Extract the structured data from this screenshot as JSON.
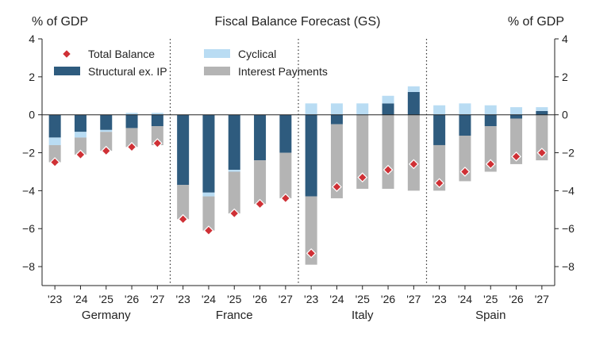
{
  "chart_data": {
    "type": "bar",
    "stacked": true,
    "title": "Fiscal Balance Forecast (GS)",
    "ylabel_left": "% of GDP",
    "ylabel_right": "% of GDP",
    "ylim": [
      -9,
      4
    ],
    "yticks": [
      -8,
      -6,
      -4,
      -2,
      0,
      2,
      4
    ],
    "grid": false,
    "legend_position": "top-left",
    "groups": [
      "Germany",
      "France",
      "Italy",
      "Spain"
    ],
    "categories": [
      "'23",
      "'24",
      "'25",
      "'26",
      "'27"
    ],
    "colors": {
      "structural": "#2e5b7e",
      "cyclical": "#b9dcf3",
      "interest": "#b4b4b4",
      "total": "#cf3035",
      "total_edge": "#ffffff"
    },
    "legend": {
      "total": "Total Balance",
      "cyclical": "Cyclical",
      "structural": "Structural ex. IP",
      "interest": "Interest Payments"
    },
    "series": [
      {
        "key": "structural",
        "data": {
          "Germany": [
            -1.2,
            -0.9,
            -0.8,
            -0.7,
            -0.6
          ],
          "France": [
            -3.7,
            -4.1,
            -2.9,
            -2.4,
            -2.0
          ],
          "Italy": [
            -4.3,
            -0.5,
            0.0,
            0.6,
            1.2
          ],
          "Spain": [
            -1.6,
            -1.1,
            -0.6,
            -0.2,
            0.2
          ]
        }
      },
      {
        "key": "cyclical",
        "data": {
          "Germany": [
            -0.4,
            -0.3,
            -0.1,
            0.1,
            0.1
          ],
          "France": [
            0.0,
            -0.2,
            -0.1,
            0.0,
            0.0
          ],
          "Italy": [
            0.6,
            0.6,
            0.6,
            0.4,
            0.3
          ],
          "Spain": [
            0.5,
            0.6,
            0.5,
            0.4,
            0.2
          ]
        }
      },
      {
        "key": "interest",
        "data": {
          "Germany": [
            -0.9,
            -0.9,
            -1.0,
            -1.0,
            -1.0
          ],
          "France": [
            -1.8,
            -1.8,
            -2.2,
            -2.3,
            -2.4
          ],
          "Italy": [
            -3.6,
            -3.9,
            -3.9,
            -3.9,
            -4.0
          ],
          "Spain": [
            -2.4,
            -2.4,
            -2.4,
            -2.4,
            -2.4
          ]
        }
      },
      {
        "key": "total",
        "data": {
          "Germany": [
            -2.5,
            -2.1,
            -1.9,
            -1.7,
            -1.5
          ],
          "France": [
            -5.5,
            -6.1,
            -5.2,
            -4.7,
            -4.4
          ],
          "Italy": [
            -7.3,
            -3.8,
            -3.3,
            -2.9,
            -2.6
          ],
          "Spain": [
            -3.6,
            -3.0,
            -2.6,
            -2.2,
            -2.0
          ]
        }
      }
    ]
  }
}
